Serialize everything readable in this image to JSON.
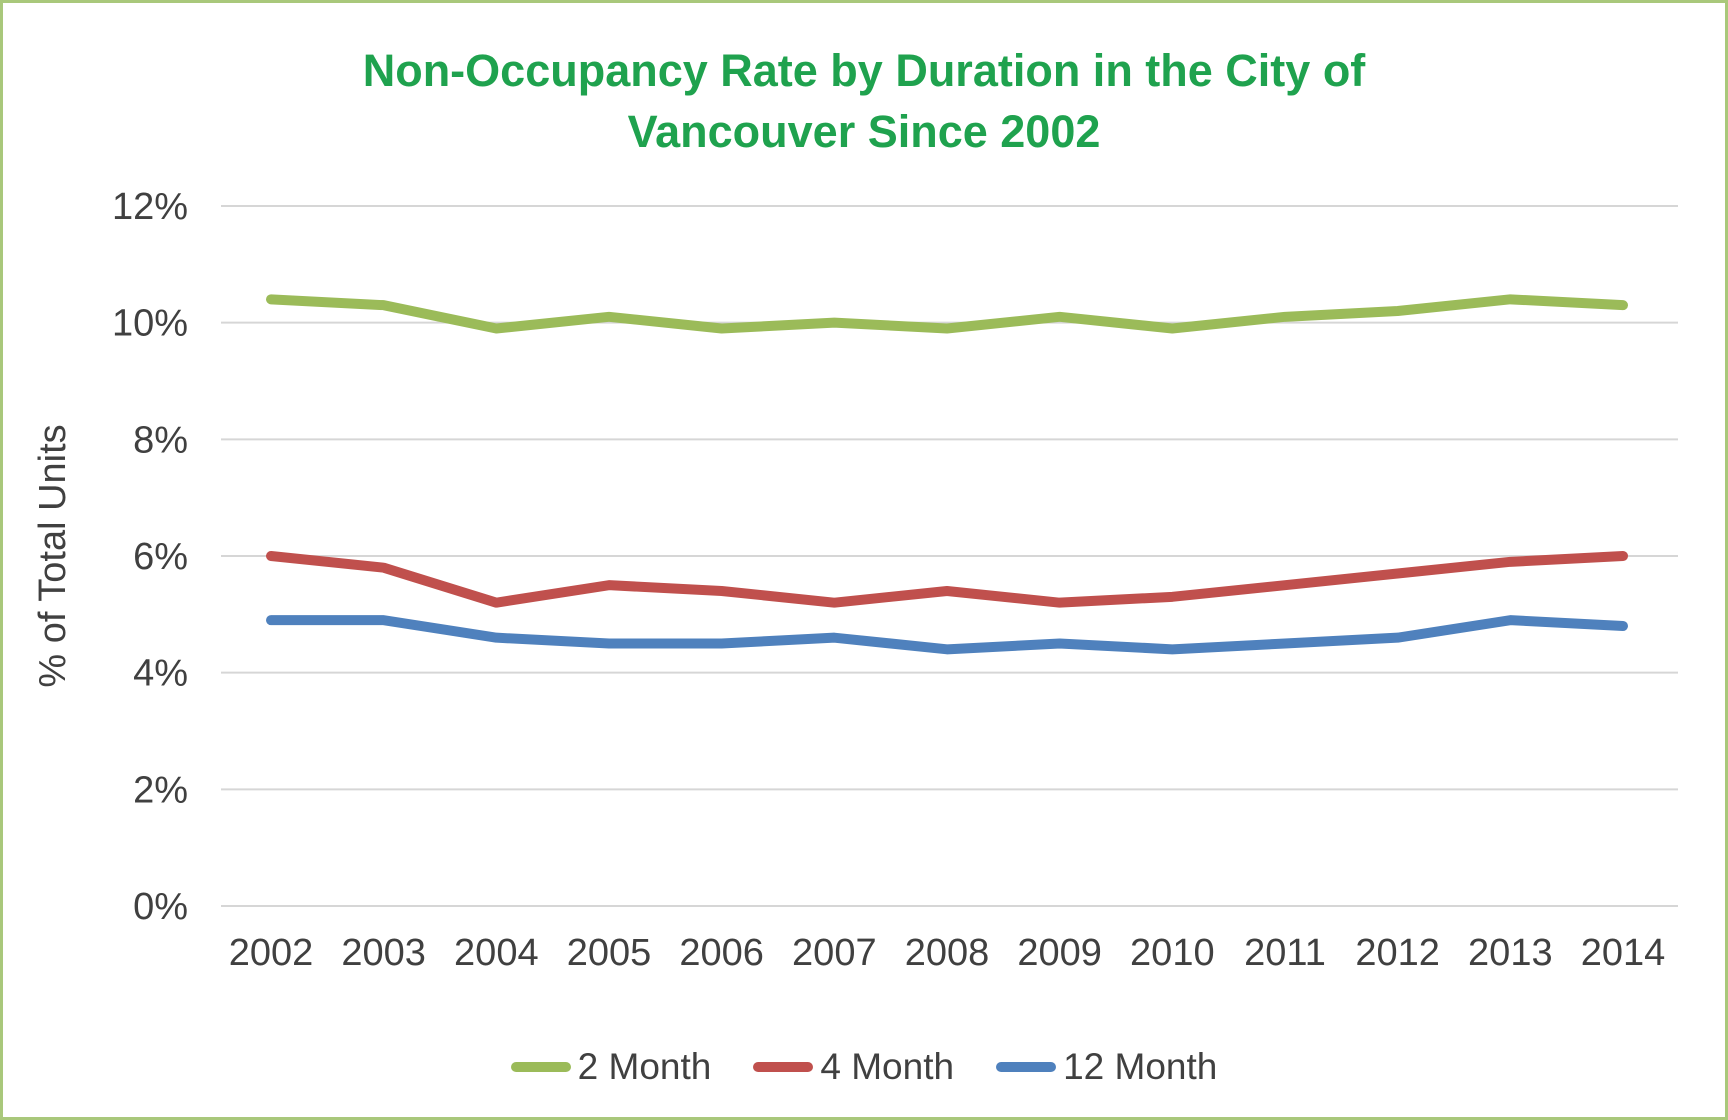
{
  "frame": {
    "border_color": "#a9c87b"
  },
  "chart_data": {
    "type": "line",
    "title": "Non-Occupancy Rate by Duration in the City of Vancouver Since 2002",
    "title_lines": [
      "Non-Occupancy Rate by Duration in the City of",
      "Vancouver Since 2002"
    ],
    "title_color": "#1fa24e",
    "ylabel": "% of Total Units",
    "xlabel": "",
    "categories": [
      "2002",
      "2003",
      "2004",
      "2005",
      "2006",
      "2007",
      "2008",
      "2009",
      "2010",
      "2011",
      "2012",
      "2013",
      "2014"
    ],
    "series": [
      {
        "name": "2 Month",
        "color": "#9bbb59",
        "values": [
          10.4,
          10.3,
          9.9,
          10.1,
          9.9,
          10.0,
          9.9,
          10.1,
          9.9,
          10.1,
          10.2,
          10.4,
          10.3
        ]
      },
      {
        "name": "4 Month",
        "color": "#c0504d",
        "values": [
          6.0,
          5.8,
          5.2,
          5.5,
          5.4,
          5.2,
          5.4,
          5.2,
          5.3,
          5.5,
          5.7,
          5.9,
          6.0
        ]
      },
      {
        "name": "12 Month",
        "color": "#4f81bd",
        "values": [
          4.9,
          4.9,
          4.6,
          4.5,
          4.5,
          4.6,
          4.4,
          4.5,
          4.4,
          4.5,
          4.6,
          4.9,
          4.8
        ]
      }
    ],
    "ylim": [
      0,
      12
    ],
    "ytick_step": 2,
    "ytick_labels": [
      "0%",
      "2%",
      "4%",
      "6%",
      "8%",
      "10%",
      "12%"
    ],
    "unit": "%",
    "grid": true,
    "legend_position": "bottom",
    "axis_text_color": "#404040",
    "gridline_color": "#d6d6d6"
  }
}
